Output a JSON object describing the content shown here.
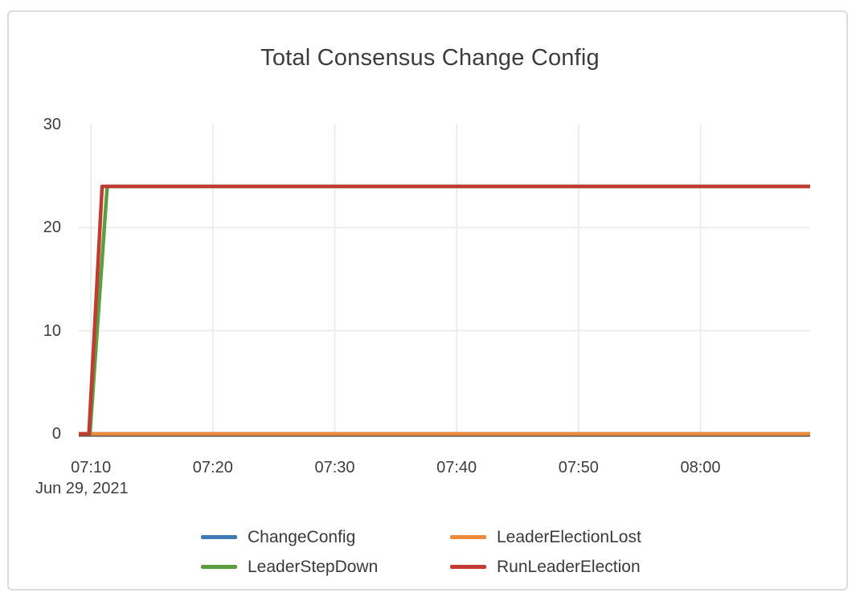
{
  "chart_data": {
    "type": "line",
    "title": "Total Consensus Change Config",
    "x_date_label": "Jun 29, 2021",
    "x_range": [
      "07:09",
      "08:09"
    ],
    "ylim": [
      0,
      30
    ],
    "yticks": [
      0,
      10,
      20,
      30
    ],
    "xticks": [
      "07:10",
      "07:20",
      "07:30",
      "07:40",
      "07:50",
      "08:00"
    ],
    "grid": true,
    "legend_position": "bottom",
    "axis_color": "#3f3f3f",
    "gridline_color": "#ececec",
    "series": [
      {
        "name": "ChangeConfig",
        "color": "#3d7ab3",
        "points": [
          [
            "07:09",
            0
          ],
          [
            "08:09",
            0
          ]
        ]
      },
      {
        "name": "LeaderElectionLost",
        "color": "#ec8b3e",
        "points": [
          [
            "07:09",
            0
          ],
          [
            "08:09",
            0
          ]
        ]
      },
      {
        "name": "LeaderStepDown",
        "color": "#5a9e3e",
        "points": [
          [
            "07:09",
            0
          ],
          [
            "07:09:55",
            0
          ],
          [
            "07:11:20",
            24
          ],
          [
            "08:09",
            24
          ]
        ]
      },
      {
        "name": "RunLeaderElection",
        "color": "#c23b32",
        "points": [
          [
            "07:09",
            0
          ],
          [
            "07:09:50",
            0
          ],
          [
            "07:10:55",
            24
          ],
          [
            "08:09",
            24
          ]
        ]
      }
    ]
  }
}
